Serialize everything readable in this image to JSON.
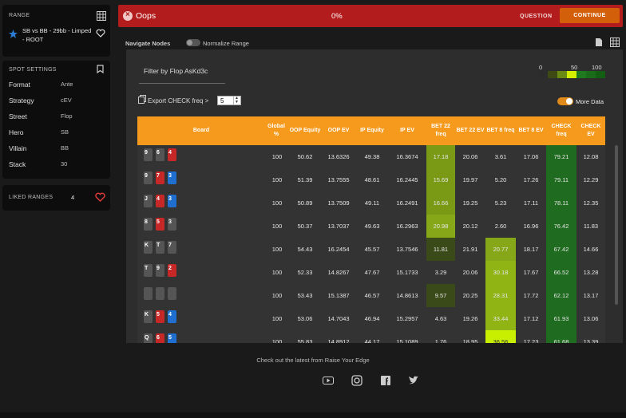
{
  "range": {
    "title": "RANGE",
    "spot": "SB vs BB - 29bb - Limped - ROOT"
  },
  "spot_settings": {
    "title": "SPOT SETTINGS",
    "rows": [
      {
        "label": "Format",
        "value": "Ante"
      },
      {
        "label": "Strategy",
        "value": "cEV"
      },
      {
        "label": "Street",
        "value": "Flop"
      },
      {
        "label": "Hero",
        "value": "SB"
      },
      {
        "label": "Villain",
        "value": "BB"
      },
      {
        "label": "Stack",
        "value": "30"
      }
    ]
  },
  "liked": {
    "title": "LIKED RANGES",
    "count": "4"
  },
  "topbar": {
    "status": "Oops",
    "progress": "0%",
    "question": "QUESTION",
    "continue": "CONTINUE"
  },
  "nav": {
    "title": "Navigate Nodes",
    "normalize": "Normalize Range"
  },
  "filter": {
    "title": "Filter by Flop AsKd3c",
    "export": "Export CHECK freq >",
    "export_value": "5",
    "more_data": "More Data"
  },
  "legend": {
    "min": "0",
    "mid": "50",
    "max": "100"
  },
  "table": {
    "headers": [
      "Board",
      "Global %",
      "OOP Equity",
      "OOP EV",
      "IP Equity",
      "IP EV",
      "BET 22 freq",
      "BET 22 EV",
      "BET 8 freq",
      "BET 8 EV",
      "CHECK freq",
      "CHECK EV"
    ],
    "rows": [
      {
        "cards": [
          [
            "9",
            "s"
          ],
          [
            "6",
            "s"
          ],
          [
            "4",
            "h"
          ]
        ],
        "vals": [
          "100",
          "50.62",
          "13.6326",
          "49.38",
          "16.3674",
          "17.18",
          "20.06",
          "3.61",
          "17.06",
          "79.21",
          "12.08"
        ]
      },
      {
        "cards": [
          [
            "9",
            "s"
          ],
          [
            "7",
            "h"
          ],
          [
            "3",
            "d"
          ]
        ],
        "vals": [
          "100",
          "51.39",
          "13.7555",
          "48.61",
          "16.2445",
          "15.69",
          "19.97",
          "5.20",
          "17.26",
          "79.11",
          "12.29"
        ]
      },
      {
        "cards": [
          [
            "J",
            "s"
          ],
          [
            "4",
            "h"
          ],
          [
            "3",
            "d"
          ]
        ],
        "vals": [
          "100",
          "50.89",
          "13.7509",
          "49.11",
          "16.2491",
          "16.66",
          "19.25",
          "5.23",
          "17.11",
          "78.11",
          "12.35"
        ]
      },
      {
        "cards": [
          [
            "8",
            "s"
          ],
          [
            "5",
            "h"
          ],
          [
            "3",
            "s"
          ]
        ],
        "vals": [
          "100",
          "50.37",
          "13.7037",
          "49.63",
          "16.2963",
          "20.98",
          "20.12",
          "2.60",
          "16.96",
          "76.42",
          "11.83"
        ]
      },
      {
        "cards": [
          [
            "K",
            "s"
          ],
          [
            "T",
            "s"
          ],
          [
            "7",
            "s"
          ]
        ],
        "vals": [
          "100",
          "54.43",
          "16.2454",
          "45.57",
          "13.7546",
          "11.81",
          "21.91",
          "20.77",
          "18.17",
          "67.42",
          "14.66"
        ]
      },
      {
        "cards": [
          [
            "T",
            "s"
          ],
          [
            "9",
            "s"
          ],
          [
            "2",
            "h"
          ]
        ],
        "vals": [
          "100",
          "52.33",
          "14.8267",
          "47.67",
          "15.1733",
          "3.29",
          "20.06",
          "30.18",
          "17.67",
          "66.52",
          "13.28"
        ]
      },
      {
        "cards": [],
        "vals": [
          "100",
          "53.43",
          "15.1387",
          "46.57",
          "14.8613",
          "9.57",
          "20.25",
          "28.31",
          "17.72",
          "62.12",
          "13.17"
        ]
      },
      {
        "cards": [
          [
            "K",
            "s"
          ],
          [
            "5",
            "h"
          ],
          [
            "4",
            "d"
          ]
        ],
        "vals": [
          "100",
          "53.06",
          "14.7043",
          "46.94",
          "15.2957",
          "4.63",
          "19.26",
          "33.44",
          "17.12",
          "61.93",
          "13.06"
        ]
      },
      {
        "cards": [
          [
            "Q",
            "s"
          ],
          [
            "6",
            "h"
          ],
          [
            "5",
            "d"
          ]
        ],
        "vals": [
          "100",
          "55.83",
          "14.8912",
          "44.17",
          "15.1089",
          "1.76",
          "18.95",
          "36.56",
          "17.23",
          "61.68",
          "13.39"
        ]
      }
    ]
  },
  "footer": {
    "text": "Check out the latest from Raise Your Edge"
  }
}
